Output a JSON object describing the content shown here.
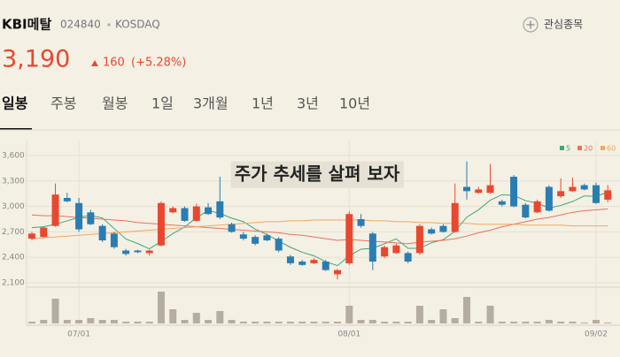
{
  "header": {
    "name": "KBI메탈",
    "code": "024840",
    "market": "KOSDAQ",
    "watch": "관심종목",
    "price": "3,190",
    "change": "160",
    "change_pct": "(+5.28%)"
  },
  "tabs": [
    "일봉",
    "주봉",
    "월봉",
    "1일",
    "3개월",
    "1년",
    "3년",
    "10년"
  ],
  "selected_tab": 0,
  "overlay": "주가 추세를 살펴 보자",
  "chart_data": {
    "type": "candlestick",
    "up_color": "#e8482f",
    "down_color": "#2a7db3",
    "volume_color": "#b5ada4",
    "grid": true,
    "categories": [
      null,
      null,
      null,
      null,
      "07/01",
      null,
      null,
      null,
      null,
      null,
      null,
      null,
      null,
      null,
      null,
      null,
      null,
      null,
      null,
      null,
      null,
      null,
      null,
      null,
      null,
      null,
      null,
      "08/01",
      null,
      null,
      null,
      null,
      null,
      null,
      null,
      null,
      null,
      null,
      null,
      null,
      null,
      null,
      null,
      null,
      null,
      null,
      null,
      null,
      "09/02",
      null
    ],
    "open": [
      2620,
      2640,
      2770,
      3100,
      3040,
      2930,
      2770,
      2680,
      2480,
      2480,
      2450,
      2540,
      2930,
      2980,
      2830,
      2990,
      3060,
      2790,
      2670,
      2640,
      2660,
      2620,
      2410,
      2350,
      2330,
      2350,
      2200,
      2330,
      2850,
      2680,
      2410,
      2450,
      2450,
      2450,
      2730,
      2770,
      2700,
      3230,
      3160,
      3160,
      3060,
      3350,
      3020,
      2930,
      3230,
      3120,
      3180,
      3250,
      3250,
      3080
    ],
    "high": [
      2700,
      2760,
      3270,
      3160,
      3100,
      2960,
      2790,
      2700,
      2500,
      2490,
      2490,
      3060,
      3000,
      3000,
      3030,
      3040,
      3350,
      2810,
      2700,
      2660,
      2680,
      2640,
      2430,
      2370,
      2390,
      2370,
      2260,
      2940,
      2910,
      2700,
      2540,
      2560,
      2470,
      2790,
      2750,
      2790,
      3270,
      3530,
      3230,
      3500,
      3080,
      3370,
      3040,
      3080,
      3250,
      3330,
      3340,
      3270,
      3280,
      3250
    ],
    "low": [
      2600,
      2630,
      2760,
      3050,
      2700,
      2780,
      2580,
      2500,
      2420,
      2450,
      2420,
      2530,
      2920,
      2820,
      2820,
      2900,
      2850,
      2690,
      2600,
      2540,
      2590,
      2460,
      2310,
      2300,
      2320,
      2240,
      2140,
      2310,
      2750,
      2250,
      2390,
      2440,
      2330,
      2430,
      2670,
      2690,
      2690,
      3080,
      3150,
      3150,
      3000,
      2990,
      2860,
      2920,
      2940,
      3100,
      3170,
      3190,
      3030,
      3050
    ],
    "close": [
      2680,
      2750,
      3140,
      3060,
      2730,
      2790,
      2600,
      2520,
      2440,
      2460,
      2480,
      3040,
      2980,
      2830,
      3000,
      2910,
      2870,
      2700,
      2620,
      2560,
      2600,
      2480,
      2330,
      2310,
      2370,
      2250,
      2250,
      2910,
      2770,
      2350,
      2520,
      2540,
      2350,
      2770,
      2680,
      2700,
      3040,
      3180,
      3200,
      3250,
      3020,
      3000,
      2870,
      3060,
      2950,
      3180,
      3230,
      3200,
      3040,
      3190
    ],
    "volume": [
      2,
      4,
      28,
      4,
      4,
      6,
      4,
      4,
      2,
      2,
      2,
      36,
      16,
      4,
      12,
      4,
      14,
      4,
      2,
      2,
      2,
      2,
      2,
      2,
      2,
      2,
      2,
      20,
      4,
      4,
      2,
      2,
      2,
      20,
      4,
      16,
      6,
      30,
      2,
      20,
      2,
      2,
      2,
      2,
      4,
      2,
      2,
      1,
      4,
      1
    ],
    "volume_lim": [
      0,
      40
    ],
    "series": [
      {
        "name": "5",
        "color": "#3fa57a",
        "values": [
          2750,
          2760,
          2790,
          2830,
          2872,
          2894,
          2864,
          2740,
          2616,
          2562,
          2500,
          2588,
          2680,
          2758,
          2866,
          2952,
          2918,
          2862,
          2820,
          2732,
          2670,
          2592,
          2518,
          2460,
          2418,
          2348,
          2302,
          2418,
          2496,
          2506,
          2560,
          2618,
          2506,
          2506,
          2572,
          2608,
          2708,
          2874,
          2960,
          3074,
          3138,
          3130,
          3068,
          3040,
          2980,
          3012,
          3058,
          3124,
          3120,
          3168
        ]
      },
      {
        "name": "20",
        "color": "#e8735a",
        "values": [
          2900,
          2890,
          2890,
          2880,
          2870,
          2860,
          2850,
          2840,
          2830,
          2810,
          2800,
          2790,
          2780,
          2770,
          2760,
          2750,
          2740,
          2730,
          2720,
          2710,
          2700,
          2690,
          2670,
          2660,
          2640,
          2620,
          2600,
          2610,
          2600,
          2590,
          2580,
          2570,
          2560,
          2580,
          2590,
          2600,
          2620,
          2650,
          2690,
          2720,
          2760,
          2790,
          2820,
          2850,
          2870,
          2900,
          2930,
          2950,
          2960,
          2970
        ]
      },
      {
        "name": "60",
        "color": "#f0a860",
        "values": [
          2620,
          2630,
          2640,
          2650,
          2660,
          2670,
          2680,
          2690,
          2700,
          2710,
          2720,
          2730,
          2740,
          2750,
          2760,
          2770,
          2780,
          2790,
          2800,
          2810,
          2820,
          2820,
          2830,
          2830,
          2840,
          2840,
          2840,
          2840,
          2840,
          2830,
          2830,
          2820,
          2820,
          2810,
          2810,
          2800,
          2800,
          2800,
          2790,
          2790,
          2790,
          2790,
          2780,
          2780,
          2780,
          2780,
          2770,
          2770,
          2770,
          2770
        ]
      }
    ],
    "ylim": [
      2100,
      3600
    ],
    "yticks": [
      {
        "value": 3600,
        "label": "3,600"
      },
      {
        "value": 3300,
        "label": "3,300"
      },
      {
        "value": 3000,
        "label": "3,000"
      },
      {
        "value": 2700,
        "label": "2,700"
      },
      {
        "value": 2400,
        "label": "2,400"
      },
      {
        "value": 2100,
        "label": "2,100"
      }
    ]
  }
}
